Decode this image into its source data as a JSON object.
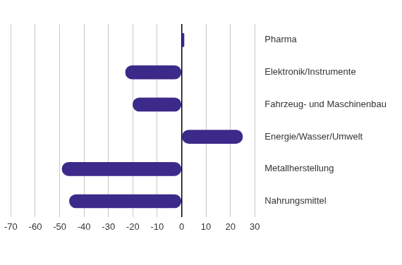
{
  "chart_data": {
    "type": "bar",
    "orientation": "horizontal",
    "categories": [
      "Pharma",
      "Elektronik/Instrumente",
      "Fahrzeug- und Maschinenbau",
      "Energie/Wasser/Umwelt",
      "Metallherstellung",
      "Nahrungsmittel"
    ],
    "values": [
      1,
      -23,
      -20,
      25,
      -49,
      -46
    ],
    "color": "#3b2a8a",
    "xlim": [
      -70,
      30
    ],
    "xticks": [
      -70,
      -60,
      -50,
      -40,
      -30,
      -20,
      -10,
      0,
      10,
      20,
      30
    ],
    "grid": true
  }
}
